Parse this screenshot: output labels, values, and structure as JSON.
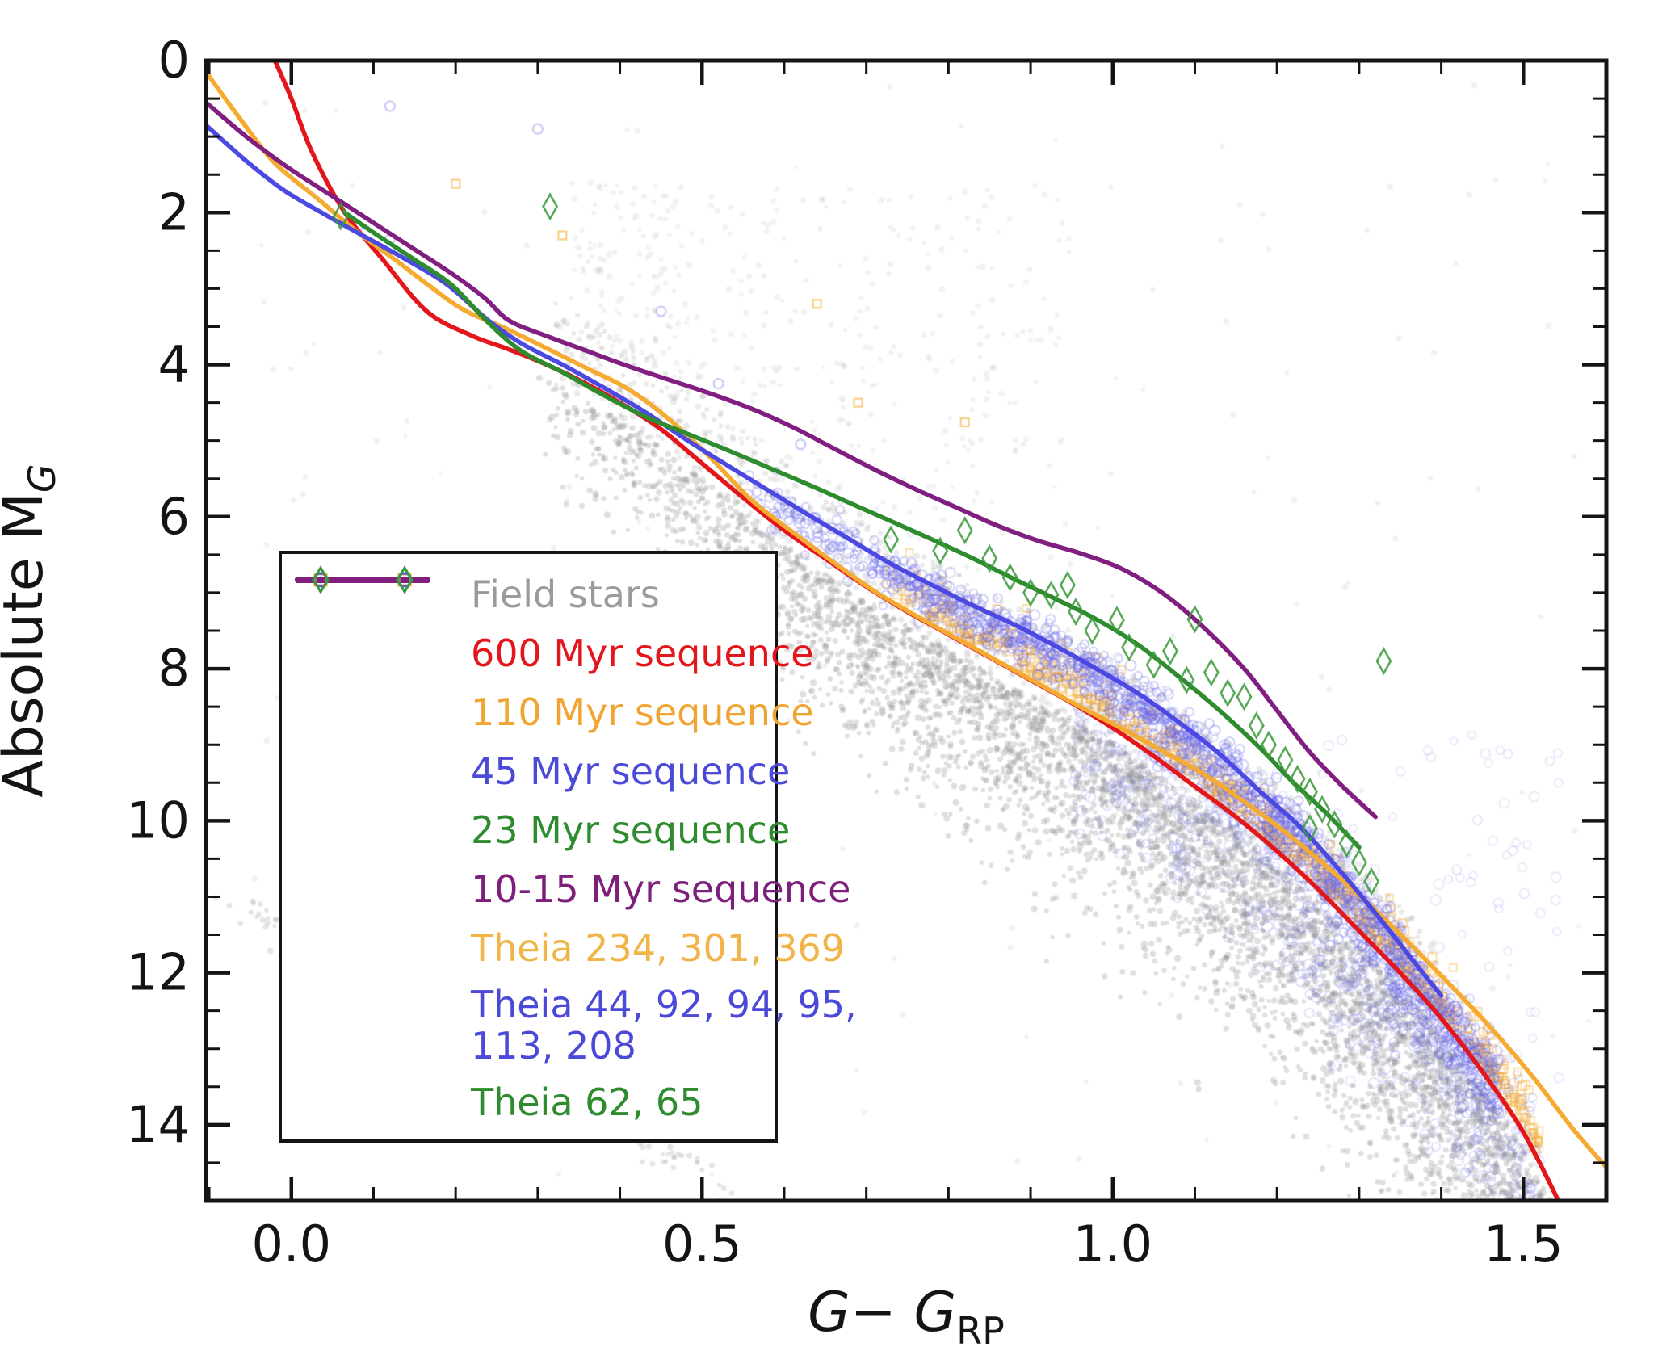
{
  "figure": {
    "kind": "color-magnitude diagram",
    "background": "#ffffff",
    "frame_color": "#141414"
  },
  "axes": {
    "x_label": {
      "var1": "G",
      "minus": "−",
      "var2": "G",
      "subscript": "RP"
    },
    "y_label": {
      "text": "Absolute M",
      "subscript": "G"
    },
    "x_tick_labels": [
      "0.0",
      "0.5",
      "1.0",
      "1.5"
    ],
    "y_tick_labels": [
      "0",
      "2",
      "4",
      "6",
      "8",
      "10",
      "12",
      "14"
    ]
  },
  "legend": {
    "entries": [
      {
        "id": "field-stars",
        "type": "dots",
        "color": "#ababab",
        "text_color": "#9b9b9b",
        "lines": [
          "Field stars"
        ]
      },
      {
        "id": "seq-600",
        "type": "line",
        "color": "#e3161b",
        "text_color": "#e3161b",
        "lines": [
          "600 Myr sequence"
        ]
      },
      {
        "id": "seq-110",
        "type": "line",
        "color": "#f5ab32",
        "text_color": "#f0a431",
        "lines": [
          "110 Myr sequence"
        ]
      },
      {
        "id": "seq-45",
        "type": "line",
        "color": "#4b49e2",
        "text_color": "#4b49d8",
        "lines": [
          "45 Myr sequence"
        ]
      },
      {
        "id": "seq-23",
        "type": "line",
        "color": "#2e8b2e",
        "text_color": "#2e8b2e",
        "lines": [
          "23 Myr sequence"
        ]
      },
      {
        "id": "seq-10-15",
        "type": "line",
        "color": "#801f80",
        "text_color": "#7d1f7b",
        "lines": [
          "10-15 Myr sequence"
        ]
      },
      {
        "id": "theia-orange",
        "type": "squares",
        "color": "#f2ae3c",
        "text_color": "#f0b448",
        "lines": [
          "Theia 234, 301, 369"
        ]
      },
      {
        "id": "theia-blue",
        "type": "circles",
        "color": "#5a58e6",
        "text_color": "#4b49d8",
        "lines": [
          "Theia 44, 92, 94, 95,",
          "113, 208"
        ]
      },
      {
        "id": "theia-green",
        "type": "diamonds",
        "color": "#3a9a3a",
        "text_color": "#2e8b2e",
        "lines": [
          "Theia 62, 65"
        ]
      }
    ]
  },
  "chart_data": {
    "type": "scatter",
    "title": "",
    "xlabel": "G − G_RP",
    "ylabel": "Absolute M_G",
    "x_range": [
      -0.104,
      1.601
    ],
    "y_range": [
      0,
      15.0
    ],
    "y_axis_inverted_magnitudes": true,
    "x_major_ticks": [
      0.0,
      0.5,
      1.0,
      1.5
    ],
    "x_minor_step": 0.1,
    "y_major_ticks": [
      0,
      2,
      4,
      6,
      8,
      10,
      12,
      14
    ],
    "y_minor_step": 0.5,
    "grid": false,
    "legend_position": "center-left",
    "series": [
      {
        "name": "600 Myr sequence",
        "type": "line",
        "color": "#e3161b",
        "width": 5.5,
        "points": [
          [
            -0.02,
            0.0
          ],
          [
            0.0,
            0.5
          ],
          [
            0.025,
            1.2
          ],
          [
            0.065,
            2.0
          ],
          [
            0.11,
            2.6
          ],
          [
            0.165,
            3.3
          ],
          [
            0.22,
            3.62
          ],
          [
            0.26,
            3.78
          ],
          [
            0.3,
            3.95
          ],
          [
            0.35,
            4.2
          ],
          [
            0.4,
            4.5
          ],
          [
            0.45,
            4.85
          ],
          [
            0.5,
            5.3
          ],
          [
            0.55,
            5.75
          ],
          [
            0.6,
            6.18
          ],
          [
            0.65,
            6.55
          ],
          [
            0.7,
            6.92
          ],
          [
            0.75,
            7.25
          ],
          [
            0.8,
            7.55
          ],
          [
            0.85,
            7.85
          ],
          [
            0.9,
            8.15
          ],
          [
            0.95,
            8.45
          ],
          [
            1.0,
            8.78
          ],
          [
            1.05,
            9.15
          ],
          [
            1.1,
            9.55
          ],
          [
            1.15,
            9.95
          ],
          [
            1.2,
            10.4
          ],
          [
            1.25,
            10.9
          ],
          [
            1.3,
            11.45
          ],
          [
            1.35,
            12.0
          ],
          [
            1.4,
            12.6
          ],
          [
            1.45,
            13.3
          ],
          [
            1.5,
            14.1
          ],
          [
            1.545,
            15.05
          ]
        ]
      },
      {
        "name": "110 Myr sequence",
        "type": "line",
        "color": "#f5ab32",
        "width": 5.5,
        "points": [
          [
            -0.104,
            0.15
          ],
          [
            -0.06,
            0.8
          ],
          [
            -0.02,
            1.35
          ],
          [
            0.03,
            1.8
          ],
          [
            0.08,
            2.25
          ],
          [
            0.13,
            2.65
          ],
          [
            0.17,
            2.98
          ],
          [
            0.21,
            3.28
          ],
          [
            0.26,
            3.52
          ],
          [
            0.31,
            3.78
          ],
          [
            0.36,
            4.05
          ],
          [
            0.41,
            4.32
          ],
          [
            0.46,
            4.72
          ],
          [
            0.51,
            5.22
          ],
          [
            0.56,
            5.78
          ],
          [
            0.61,
            6.2
          ],
          [
            0.66,
            6.6
          ],
          [
            0.71,
            6.98
          ],
          [
            0.76,
            7.3
          ],
          [
            0.81,
            7.6
          ],
          [
            0.86,
            7.9
          ],
          [
            0.91,
            8.2
          ],
          [
            0.96,
            8.5
          ],
          [
            1.01,
            8.78
          ],
          [
            1.06,
            9.08
          ],
          [
            1.11,
            9.38
          ],
          [
            1.16,
            9.75
          ],
          [
            1.21,
            10.15
          ],
          [
            1.26,
            10.6
          ],
          [
            1.31,
            11.08
          ],
          [
            1.36,
            11.6
          ],
          [
            1.41,
            12.15
          ],
          [
            1.46,
            12.72
          ],
          [
            1.51,
            13.35
          ],
          [
            1.56,
            14.05
          ],
          [
            1.6,
            14.55
          ]
        ]
      },
      {
        "name": "45 Myr sequence",
        "type": "line",
        "color": "#4b49e2",
        "width": 5.5,
        "points": [
          [
            -0.104,
            0.85
          ],
          [
            -0.055,
            1.32
          ],
          [
            -0.01,
            1.7
          ],
          [
            0.04,
            2.02
          ],
          [
            0.09,
            2.32
          ],
          [
            0.14,
            2.62
          ],
          [
            0.19,
            2.95
          ],
          [
            0.24,
            3.42
          ],
          [
            0.28,
            3.72
          ],
          [
            0.33,
            4.0
          ],
          [
            0.38,
            4.3
          ],
          [
            0.43,
            4.62
          ],
          [
            0.48,
            4.98
          ],
          [
            0.53,
            5.32
          ],
          [
            0.58,
            5.65
          ],
          [
            0.63,
            5.98
          ],
          [
            0.68,
            6.3
          ],
          [
            0.73,
            6.62
          ],
          [
            0.78,
            6.9
          ],
          [
            0.83,
            7.17
          ],
          [
            0.88,
            7.42
          ],
          [
            0.93,
            7.7
          ],
          [
            0.98,
            8.0
          ],
          [
            1.03,
            8.32
          ],
          [
            1.08,
            8.7
          ],
          [
            1.13,
            9.12
          ],
          [
            1.18,
            9.62
          ],
          [
            1.23,
            10.1
          ],
          [
            1.28,
            10.7
          ],
          [
            1.33,
            11.35
          ],
          [
            1.37,
            11.9
          ],
          [
            1.4,
            12.3
          ]
        ]
      },
      {
        "name": "23 Myr sequence",
        "type": "line",
        "color": "#2e8b2e",
        "width": 5.5,
        "points": [
          [
            0.065,
            2.0
          ],
          [
            0.105,
            2.3
          ],
          [
            0.15,
            2.62
          ],
          [
            0.195,
            2.95
          ],
          [
            0.24,
            3.45
          ],
          [
            0.28,
            3.82
          ],
          [
            0.33,
            4.1
          ],
          [
            0.38,
            4.4
          ],
          [
            0.43,
            4.68
          ],
          [
            0.48,
            4.9
          ],
          [
            0.53,
            5.12
          ],
          [
            0.58,
            5.35
          ],
          [
            0.63,
            5.58
          ],
          [
            0.68,
            5.82
          ],
          [
            0.73,
            6.06
          ],
          [
            0.78,
            6.3
          ],
          [
            0.83,
            6.55
          ],
          [
            0.88,
            6.82
          ],
          [
            0.93,
            7.08
          ],
          [
            0.98,
            7.35
          ],
          [
            1.03,
            7.68
          ],
          [
            1.08,
            8.1
          ],
          [
            1.13,
            8.55
          ],
          [
            1.18,
            9.05
          ],
          [
            1.22,
            9.5
          ],
          [
            1.26,
            9.9
          ],
          [
            1.3,
            10.35
          ]
        ]
      },
      {
        "name": "10-15 Myr sequence",
        "type": "line",
        "color": "#801f80",
        "width": 5.5,
        "points": [
          [
            -0.104,
            0.55
          ],
          [
            -0.055,
            1.0
          ],
          [
            -0.005,
            1.4
          ],
          [
            0.045,
            1.75
          ],
          [
            0.095,
            2.1
          ],
          [
            0.145,
            2.45
          ],
          [
            0.195,
            2.8
          ],
          [
            0.235,
            3.12
          ],
          [
            0.265,
            3.42
          ],
          [
            0.31,
            3.62
          ],
          [
            0.36,
            3.82
          ],
          [
            0.41,
            4.02
          ],
          [
            0.46,
            4.2
          ],
          [
            0.51,
            4.38
          ],
          [
            0.56,
            4.58
          ],
          [
            0.61,
            4.82
          ],
          [
            0.66,
            5.1
          ],
          [
            0.71,
            5.38
          ],
          [
            0.76,
            5.64
          ],
          [
            0.81,
            5.88
          ],
          [
            0.86,
            6.12
          ],
          [
            0.91,
            6.32
          ],
          [
            0.96,
            6.48
          ],
          [
            1.01,
            6.68
          ],
          [
            1.06,
            7.0
          ],
          [
            1.11,
            7.45
          ],
          [
            1.16,
            8.0
          ],
          [
            1.2,
            8.55
          ],
          [
            1.24,
            9.1
          ],
          [
            1.28,
            9.55
          ],
          [
            1.32,
            9.95
          ]
        ]
      }
    ],
    "scatter_series": [
      {
        "name": "Theia 62, 65",
        "marker": "open-diamond",
        "color": "#3a9a3a",
        "points": [
          [
            0.06,
            2.05
          ],
          [
            0.315,
            1.92
          ],
          [
            0.73,
            6.3
          ],
          [
            0.79,
            6.45
          ],
          [
            0.82,
            6.18
          ],
          [
            0.85,
            6.55
          ],
          [
            0.875,
            6.8
          ],
          [
            0.9,
            7.0
          ],
          [
            0.925,
            7.03
          ],
          [
            0.945,
            6.9
          ],
          [
            0.955,
            7.25
          ],
          [
            0.975,
            7.5
          ],
          [
            1.005,
            7.36
          ],
          [
            1.02,
            7.72
          ],
          [
            1.05,
            7.95
          ],
          [
            1.07,
            7.77
          ],
          [
            1.09,
            8.15
          ],
          [
            1.1,
            7.35
          ],
          [
            1.12,
            8.05
          ],
          [
            1.14,
            8.32
          ],
          [
            1.16,
            8.37
          ],
          [
            1.175,
            8.75
          ],
          [
            1.19,
            9.0
          ],
          [
            1.21,
            9.2
          ],
          [
            1.225,
            9.45
          ],
          [
            1.24,
            9.62
          ],
          [
            1.255,
            9.85
          ],
          [
            1.27,
            10.05
          ],
          [
            1.285,
            10.3
          ],
          [
            1.3,
            10.55
          ],
          [
            1.315,
            10.8
          ],
          [
            1.24,
            10.1
          ],
          [
            1.33,
            7.9
          ]
        ]
      },
      {
        "name": "Theia 44, 92, 94, 95, 113, 208 (bright outliers)",
        "marker": "open-circle",
        "color": "#6a68e8",
        "points": [
          [
            0.12,
            0.6
          ],
          [
            0.3,
            0.9
          ],
          [
            0.08,
            2.2
          ],
          [
            0.12,
            2.35
          ],
          [
            0.45,
            3.3
          ],
          [
            0.52,
            4.25
          ],
          [
            0.62,
            5.05
          ]
        ]
      },
      {
        "name": "Theia 234, 301, 369 (bright outliers)",
        "marker": "open-square",
        "color": "#f2ae3c",
        "points": [
          [
            0.69,
            4.5
          ],
          [
            0.82,
            4.76
          ],
          [
            0.2,
            1.62
          ],
          [
            0.33,
            2.3
          ],
          [
            0.64,
            3.2
          ]
        ]
      }
    ],
    "scatter_clouds": {
      "note": "dense semi-transparent point clouds; rendered from these distribution parameters",
      "seed": 20481673,
      "field_stars": {
        "color": [
          150,
          150,
          152
        ],
        "marker": "dot",
        "main_sequence": {
          "n": 5200,
          "d_min": 0.3,
          "d_span": 1.28,
          "d_pow": 0.62,
          "ridge_offset": 0.38,
          "up_shift": 0.18,
          "sigma_base": 0.22,
          "sigma_slope": 0.34,
          "alpha": 0.3
        },
        "binaries": {
          "n": 850,
          "d_min": 0.32,
          "d_max": 1.4,
          "above_min": 0.15,
          "above_max": 1.25,
          "alpha": 0.2
        },
        "upper_haze": {
          "n": 360,
          "d_min": 0.34,
          "d_max": 0.95,
          "m_min": 1.6,
          "alpha": 0.12
        },
        "white_dwarfs": {
          "n": 190,
          "d_start": -0.08,
          "d_len": 0.6,
          "m_start": 11.05,
          "slope": 6.2,
          "sigma": 0.17,
          "alpha": 0.25
        },
        "uniform": {
          "n": 240,
          "d_min": -0.05,
          "d_max": 1.58,
          "m_min": 0.3,
          "m_max": 14.7,
          "alpha": 0.13
        }
      },
      "theia_blue_cloud": {
        "color": [
          100,
          100,
          235
        ],
        "marker": "open-circle",
        "core": {
          "n": 1500,
          "d_min": 0.55,
          "d_span": 0.92,
          "d_pow": 0.6,
          "jitter": 0.15,
          "fade_sigma": 0.45,
          "alpha": 0.3
        },
        "halo": {
          "n": 620,
          "d_min": 0.95,
          "d_max": 1.52,
          "below_min": 0.1,
          "below_max": 1.9,
          "g_sigma": 0.35,
          "alpha": 0.18
        },
        "outliers": {
          "n": 90,
          "d_min": 1.25,
          "d_max": 1.56,
          "m_min": 8.8,
          "m_max": 13.9,
          "alpha": 0.14
        }
      },
      "theia_orange_cloud": {
        "color": [
          244,
          172,
          52
        ],
        "marker": "open-square",
        "band": {
          "n": 640,
          "d_min": 0.72,
          "d_span": 0.8,
          "d_pow": 0.8,
          "above": 0.05,
          "sigma": 0.28,
          "alpha": 0.4
        }
      }
    }
  }
}
